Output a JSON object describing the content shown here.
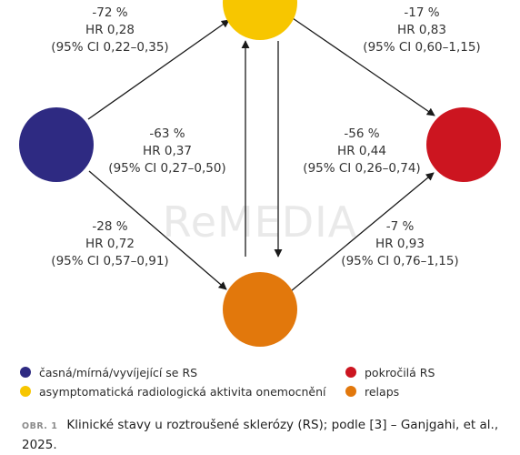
{
  "watermark": "ReMEDIA",
  "nodes": [
    {
      "id": "early",
      "color": "#2e2a82"
    },
    {
      "id": "rias",
      "color": "#f7c600"
    },
    {
      "id": "advanced",
      "color": "#cc1520"
    },
    {
      "id": "relapse",
      "color": "#e2780c"
    }
  ],
  "edges": {
    "early_to_rias": {
      "change": "-72 %",
      "hr": "HR 0,28",
      "ci": "(95% CI 0,22–0,35)"
    },
    "rias_to_advanced": {
      "change": "-17 %",
      "hr": "HR 0,83",
      "ci": "(95% CI 0,60–1,15)"
    },
    "early_to_advanced": {
      "change": "-63 %",
      "hr": "HR 0,37",
      "ci": "(95% CI 0,27–0,50)"
    },
    "rias_relapse": {
      "change": "-56 %",
      "hr": "HR 0,44",
      "ci": "(95% CI 0,26–0,74)"
    },
    "early_to_relapse": {
      "change": "-28 %",
      "hr": "HR 0,72",
      "ci": "(95% CI 0,57–0,91)"
    },
    "relapse_to_advanced": {
      "change": "-7 %",
      "hr": "HR 0,93",
      "ci": "(95% CI 0,76–1,15)"
    }
  },
  "legend": {
    "early": {
      "label": "časná/mírná/vyvíjející se RS",
      "color": "#2e2a82"
    },
    "rias": {
      "label": "asymptomatická radiologická aktivita onemocnění",
      "color": "#f7c600"
    },
    "advanced": {
      "label": "pokročilá RS",
      "color": "#cc1520"
    },
    "relapse": {
      "label": "relaps",
      "color": "#e2780c"
    }
  },
  "caption": {
    "label": "OBR. 1",
    "text": "Klinické stavy u roztroušené sklerózy (RS); podle [3] – Ganjgahi, et al., 2025."
  }
}
